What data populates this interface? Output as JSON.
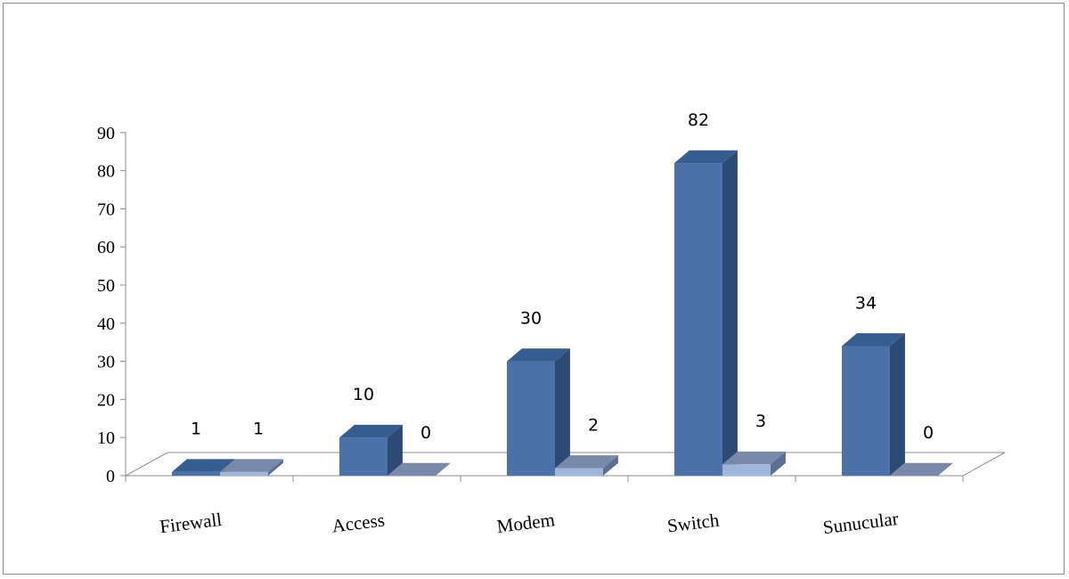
{
  "chart_data": {
    "type": "bar",
    "subtype": "3d-clustered-column",
    "title": "",
    "xlabel": "",
    "ylabel": "",
    "ylim": [
      0,
      90
    ],
    "ytick_step": 10,
    "ytick_labels": [
      "0",
      "10",
      "20",
      "30",
      "40",
      "50",
      "60",
      "70",
      "80",
      "90"
    ],
    "categories": [
      "Firewall",
      "Access",
      "Modem",
      "Switch",
      "Sunucular"
    ],
    "series": [
      {
        "values": [
          1,
          10,
          30,
          82,
          34
        ],
        "labels": [
          "1",
          "10",
          "30",
          "82",
          "34"
        ],
        "color": "#4a72a8",
        "side_color": "#2c4a74",
        "top_color": "#355d8f"
      },
      {
        "values": [
          1,
          0,
          2,
          3,
          0
        ],
        "labels": [
          "1",
          "0",
          "2",
          "3",
          "0"
        ],
        "color": "#9fb6dc",
        "side_color": "#5a6f93",
        "top_color": "#7889aa"
      }
    ],
    "legend": "none",
    "grid": false
  }
}
